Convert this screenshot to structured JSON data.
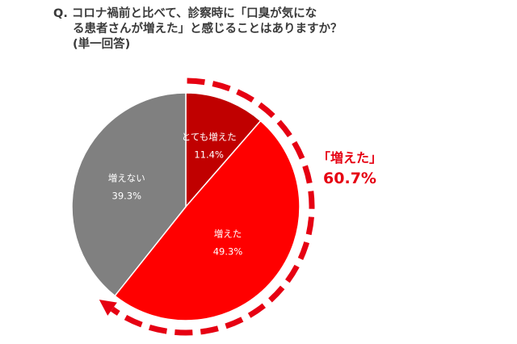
{
  "question": {
    "line1": "Q. コロナ禍前と比べて、診察時に「口臭が気にな",
    "line2": "る患者さんが増えた」と感じることはありますか？",
    "line3": "(単一回答)"
  },
  "chart_data": {
    "type": "pie",
    "title": "Q. コロナ禍前と比べて、診察時に「口臭が気になる患者さんが増えた」と感じることはありますか？(単一回答)",
    "unit": "%",
    "start": "12 o'clock",
    "direction": "clockwise",
    "slices": [
      {
        "label": "とても増えた",
        "value": 11.4,
        "display": "11.4%",
        "color": "#c00000"
      },
      {
        "label": "増えた",
        "value": 49.3,
        "display": "49.3%",
        "color": "#ff0000"
      },
      {
        "label": "増えない",
        "value": 39.3,
        "display": "39.3%",
        "color": "#808080"
      }
    ],
    "callout": {
      "label": "「増えた」",
      "value": 60.7,
      "display": "60.7%",
      "covers": [
        "とても増えた",
        "増えた"
      ],
      "color": "#e60012"
    }
  }
}
